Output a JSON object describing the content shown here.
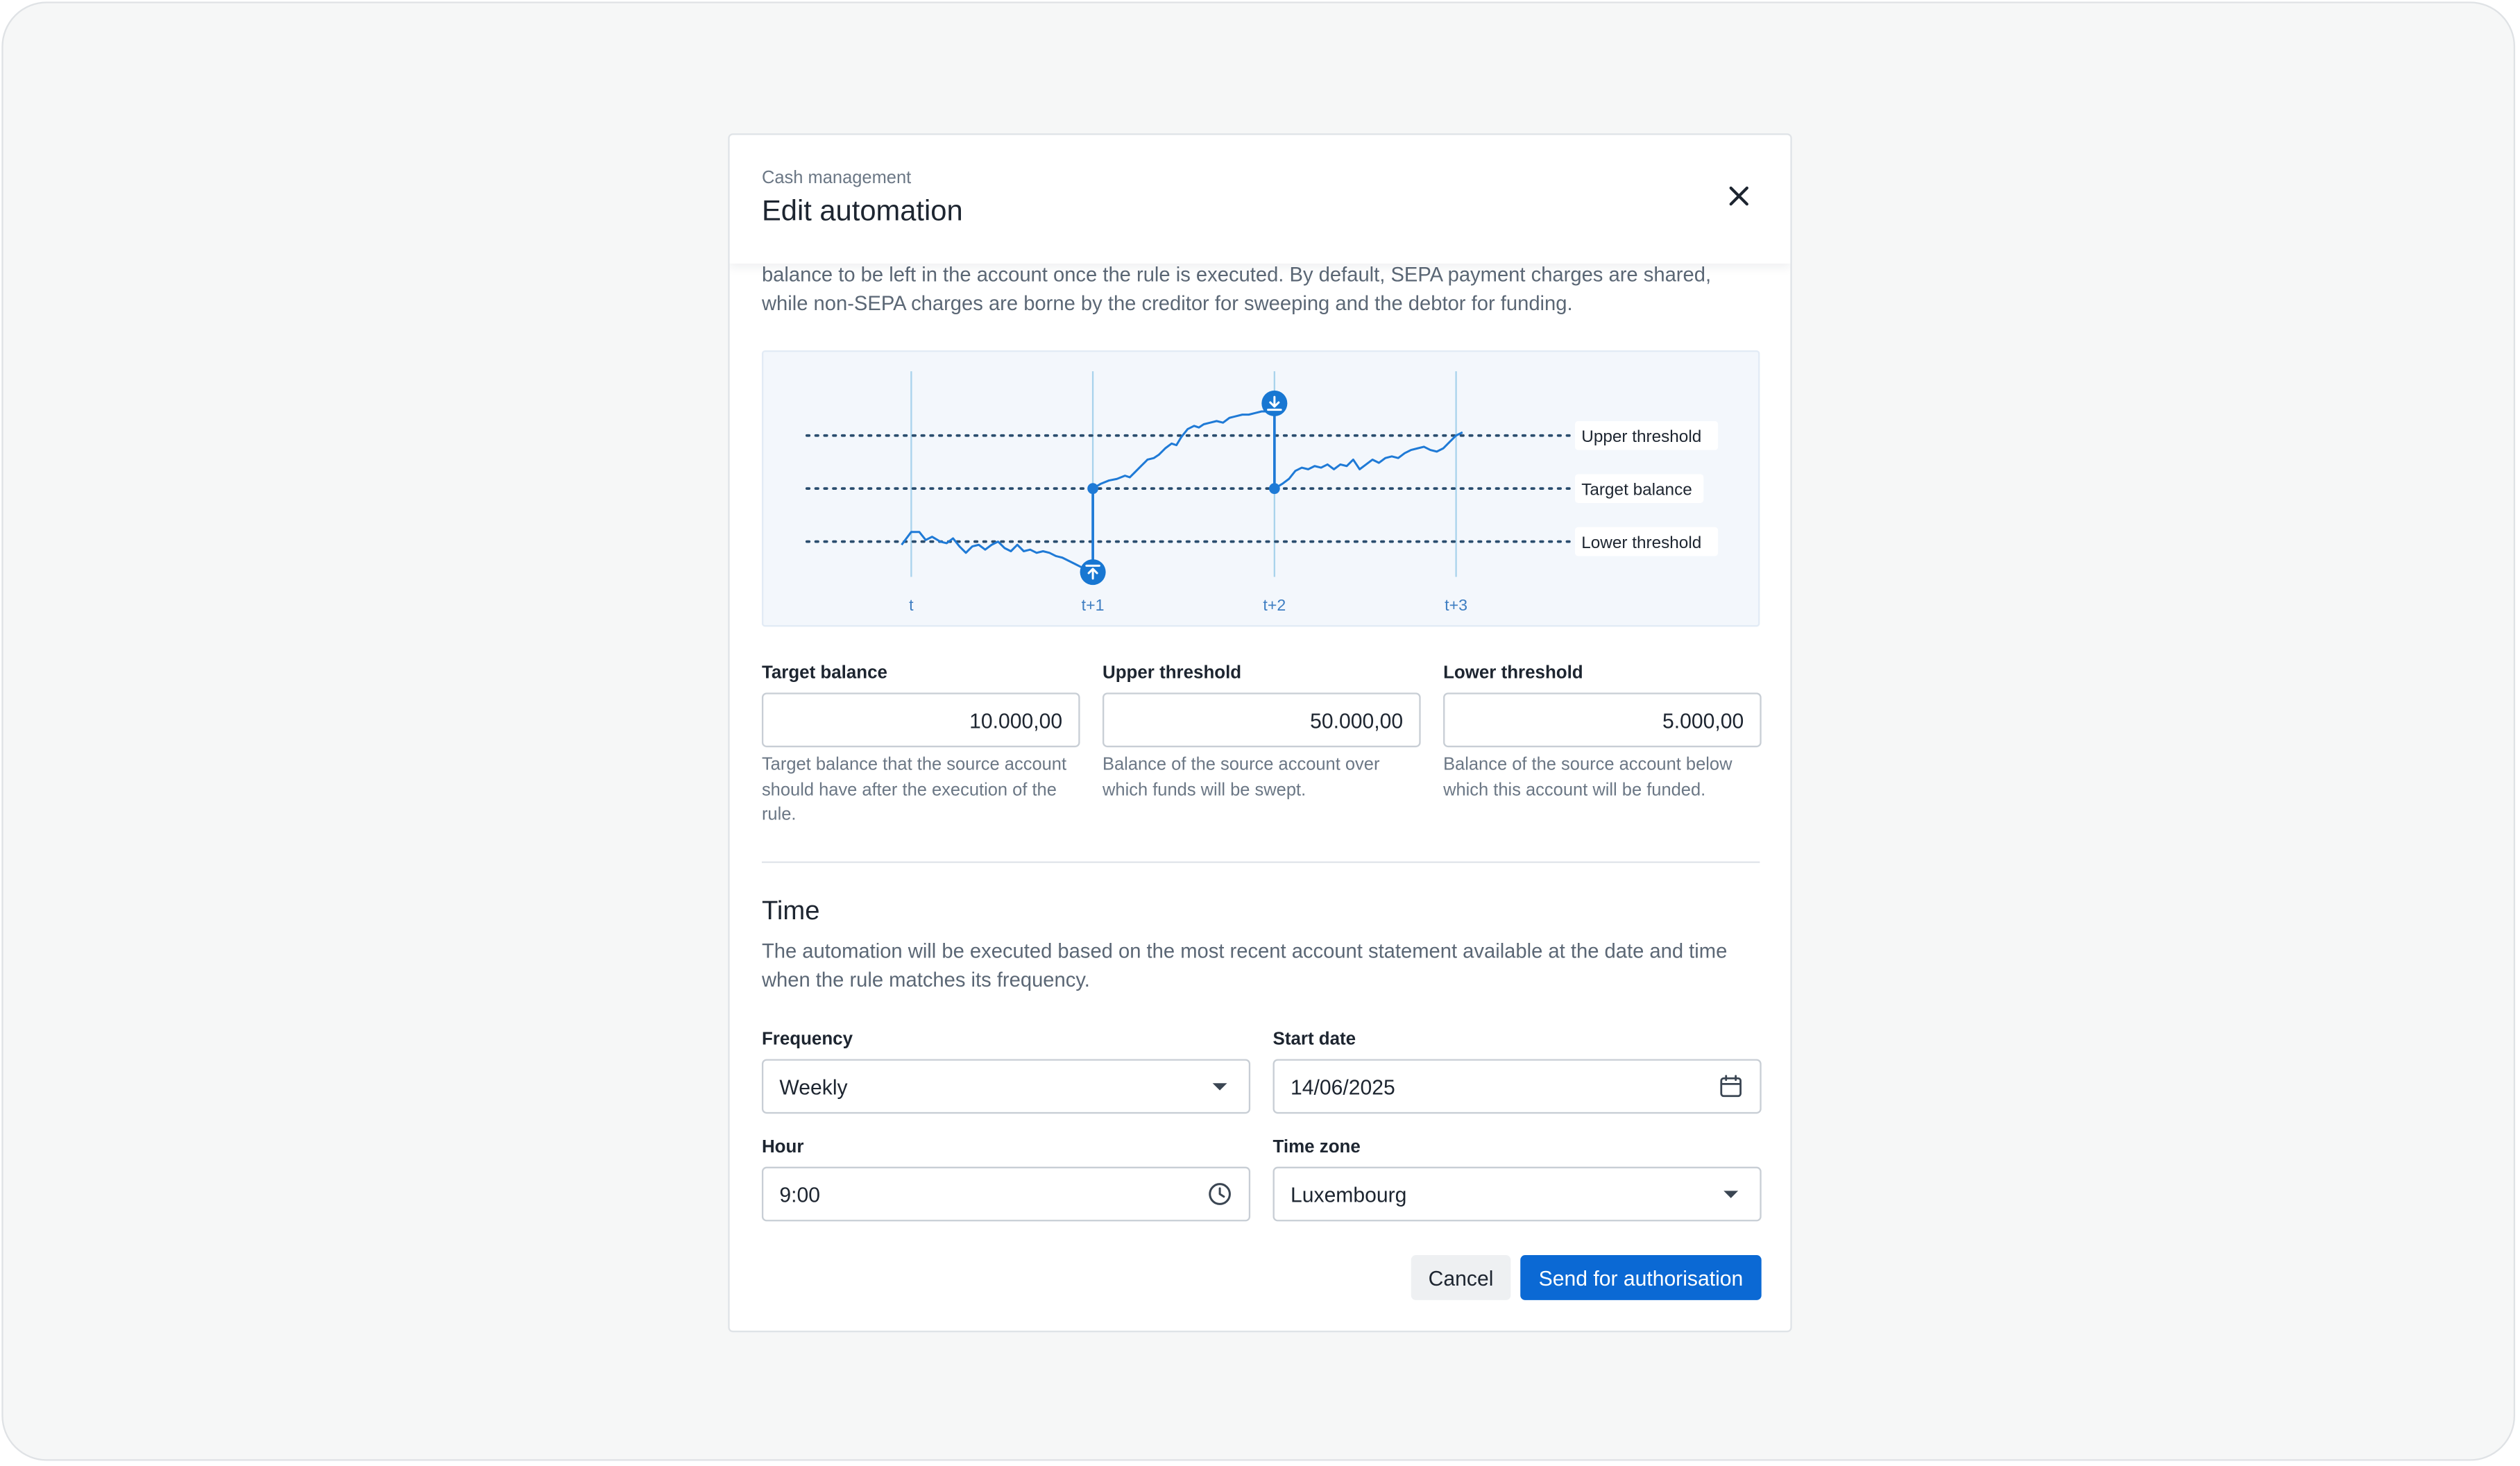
{
  "modal": {
    "eyebrow": "Cash management",
    "title": "Edit automation",
    "intro": "balance to be left in the account once the rule is executed. By default, SEPA payment charges are shared, while non-SEPA charges are borne by the creditor for sweeping and the debtor for funding."
  },
  "chart_data": {
    "type": "line",
    "x_ticks": [
      "t",
      "t+1",
      "t+2",
      "t+3"
    ],
    "reference_lines": [
      "Upper threshold",
      "Target balance",
      "Lower threshold"
    ],
    "colors": {
      "line": "#1f7ad6",
      "marker": "#1877d2",
      "guide": "#9fcdea",
      "background": "#f3f7fc"
    },
    "markers": [
      {
        "at": "t+1",
        "type": "funding",
        "icon": "arrow-up-icon"
      },
      {
        "at": "t+2",
        "type": "sweeping",
        "icon": "arrow-down-icon"
      }
    ]
  },
  "thresholds": {
    "target": {
      "label": "Target balance",
      "value": "10.000,00",
      "help": "Target balance that the source account should have after the execution of the rule."
    },
    "upper": {
      "label": "Upper threshold",
      "value": "50.000,00",
      "help": "Balance of the source account over which funds will be swept."
    },
    "lower": {
      "label": "Lower threshold",
      "value": "5.000,00",
      "help": "Balance of the source account below which this account will be funded."
    }
  },
  "time": {
    "title": "Time",
    "description": "The automation will be executed based on the most recent account statement available at the date and time when the rule matches its frequency.",
    "frequency": {
      "label": "Frequency",
      "value": "Weekly",
      "icon": "caret-down-icon"
    },
    "start_date": {
      "label": "Start date",
      "value": "14/06/2025",
      "icon": "calendar-icon"
    },
    "hour": {
      "label": "Hour",
      "value": "9:00",
      "icon": "clock-icon"
    },
    "time_zone": {
      "label": "Time zone",
      "value": "Luxembourg",
      "icon": "caret-down-icon"
    }
  },
  "actions": {
    "cancel": "Cancel",
    "submit": "Send for authorisation"
  },
  "colors": {
    "primary": "#0b69d4",
    "text": "#1d2530",
    "muted": "#6b7785"
  }
}
